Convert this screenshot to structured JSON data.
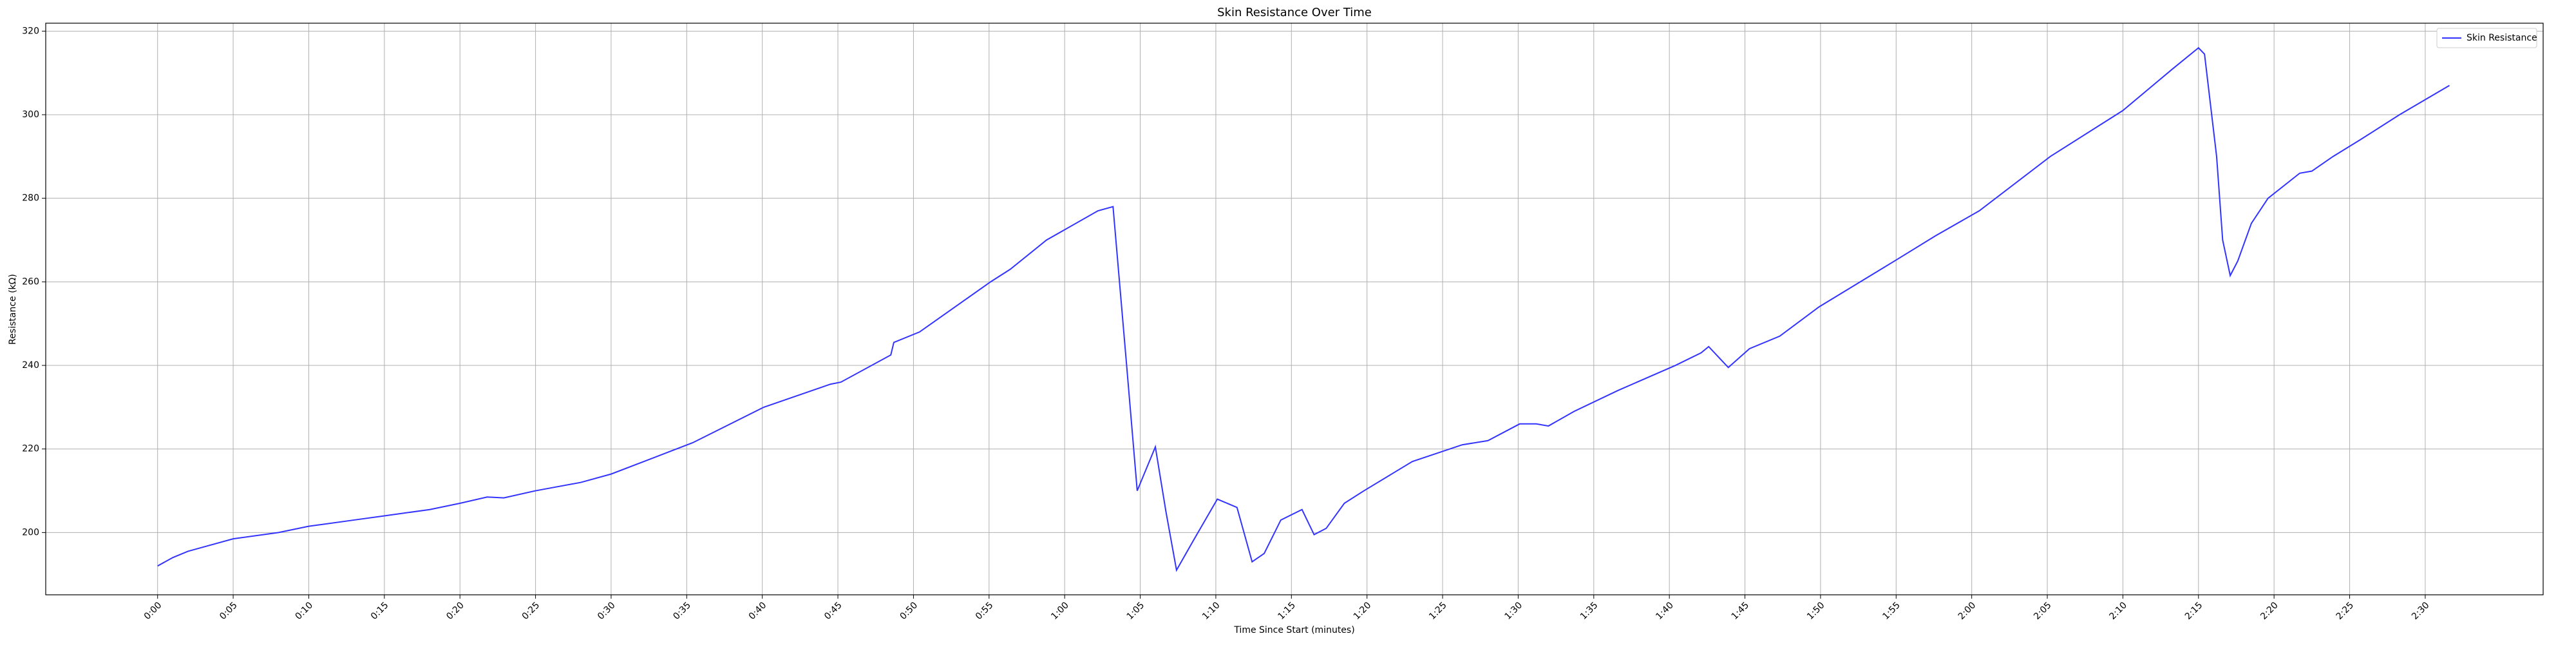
{
  "chart_data": {
    "type": "line",
    "title": "Skin Resistance Over Time",
    "x_label": "Time Since Start (minutes)",
    "y_label": "Resistance (kΩ)",
    "x": [
      0,
      1,
      2,
      3,
      5,
      8,
      10,
      13,
      15,
      18,
      20,
      21.8,
      22.9,
      25,
      28,
      30,
      33.6,
      35.4,
      40.1,
      44.5,
      45.2,
      48.5,
      48.7,
      50.4,
      55.1,
      56.4,
      58.8,
      62.2,
      63.2,
      64.1,
      64.8,
      66,
      66.7,
      67.4,
      68.5,
      70.1,
      71.4,
      72.4,
      73.2,
      74.3,
      75.7,
      76.5,
      77.3,
      78.5,
      79.8,
      83,
      86.3,
      88,
      90.1,
      91.2,
      92,
      93.7,
      96.6,
      100.4,
      102.1,
      102.6,
      103.9,
      105.3,
      107.3,
      109.9,
      114.9,
      117.6,
      120.5,
      125.2,
      130,
      133.3,
      135,
      135.4,
      136.2,
      136.6,
      137.1,
      137.6,
      138.5,
      139.6,
      141.7,
      142.5,
      143.9,
      145.7,
      148.3,
      151.6
    ],
    "series": [
      {
        "name": "Skin Resistance",
        "color": "#3333ff",
        "values": [
          192,
          194,
          195.5,
          196.5,
          198.5,
          200,
          201.5,
          203,
          204,
          205.5,
          207,
          208.5,
          208.3,
          210,
          212,
          214,
          219,
          221.5,
          230,
          235.5,
          236,
          242.5,
          245.5,
          248,
          260,
          263,
          270,
          277,
          278,
          240,
          210,
          220.5,
          205,
          191,
          198,
          208,
          206,
          193,
          195,
          203,
          205.5,
          199.5,
          201,
          207,
          210,
          217,
          221,
          222,
          226,
          226,
          225.5,
          229,
          234,
          240,
          243,
          244.5,
          239.5,
          244,
          247,
          254,
          265,
          271,
          277,
          290,
          301,
          311,
          316,
          314.5,
          290,
          270,
          261.5,
          265,
          274,
          280,
          286,
          286.5,
          290,
          294,
          300,
          307
        ]
      }
    ],
    "xlim": [
      -7.4,
      157.8
    ],
    "ylim": [
      185.1,
      321.9
    ],
    "xticks": [
      {
        "value": 0,
        "label": "0:00"
      },
      {
        "value": 5,
        "label": "0:05"
      },
      {
        "value": 10,
        "label": "0:10"
      },
      {
        "value": 15,
        "label": "0:15"
      },
      {
        "value": 20,
        "label": "0:20"
      },
      {
        "value": 25,
        "label": "0:25"
      },
      {
        "value": 30,
        "label": "0:30"
      },
      {
        "value": 35,
        "label": "0:35"
      },
      {
        "value": 40,
        "label": "0:40"
      },
      {
        "value": 45,
        "label": "0:45"
      },
      {
        "value": 50,
        "label": "0:50"
      },
      {
        "value": 55,
        "label": "0:55"
      },
      {
        "value": 60,
        "label": "1:00"
      },
      {
        "value": 65,
        "label": "1:05"
      },
      {
        "value": 70,
        "label": "1:10"
      },
      {
        "value": 75,
        "label": "1:15"
      },
      {
        "value": 80,
        "label": "1:20"
      },
      {
        "value": 85,
        "label": "1:25"
      },
      {
        "value": 90,
        "label": "1:30"
      },
      {
        "value": 95,
        "label": "1:35"
      },
      {
        "value": 100,
        "label": "1:40"
      },
      {
        "value": 105,
        "label": "1:45"
      },
      {
        "value": 110,
        "label": "1:50"
      },
      {
        "value": 115,
        "label": "1:55"
      },
      {
        "value": 120,
        "label": "2:00"
      },
      {
        "value": 125,
        "label": "2:05"
      },
      {
        "value": 130,
        "label": "2:10"
      },
      {
        "value": 135,
        "label": "2:15"
      },
      {
        "value": 140,
        "label": "2:20"
      },
      {
        "value": 145,
        "label": "2:25"
      },
      {
        "value": 150,
        "label": "2:30"
      }
    ],
    "yticks": [
      200,
      220,
      240,
      260,
      280,
      300,
      320
    ],
    "grid": true,
    "legend": "upper right"
  }
}
